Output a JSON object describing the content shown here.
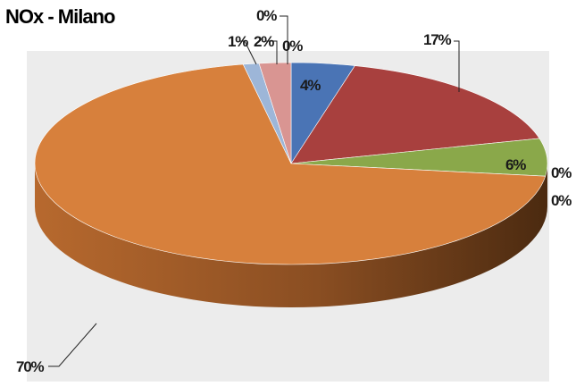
{
  "chart_data": {
    "type": "pie",
    "style": "3d-exploded-none",
    "title": "NOx - Milano",
    "slices": [
      {
        "label": "4%",
        "value": 4,
        "color": "#4a74b5"
      },
      {
        "label": "17%",
        "value": 17,
        "color": "#a8403e"
      },
      {
        "label": "6%",
        "value": 6,
        "color": "#8aa84a"
      },
      {
        "label": "0%",
        "value": 0,
        "color": "#6e5aa0"
      },
      {
        "label": "0%",
        "value": 0,
        "color": "#3fa0b8"
      },
      {
        "label": "70%",
        "value": 70,
        "color": "#d7803c"
      },
      {
        "label": "1%",
        "value": 1,
        "color": "#9db6d8"
      },
      {
        "label": "2%",
        "value": 2,
        "color": "#d99592"
      },
      {
        "label": "0%",
        "value": 0,
        "color": "#b8cf8e"
      },
      {
        "label": "0%",
        "value": 0,
        "color": "#a897c6"
      }
    ]
  }
}
